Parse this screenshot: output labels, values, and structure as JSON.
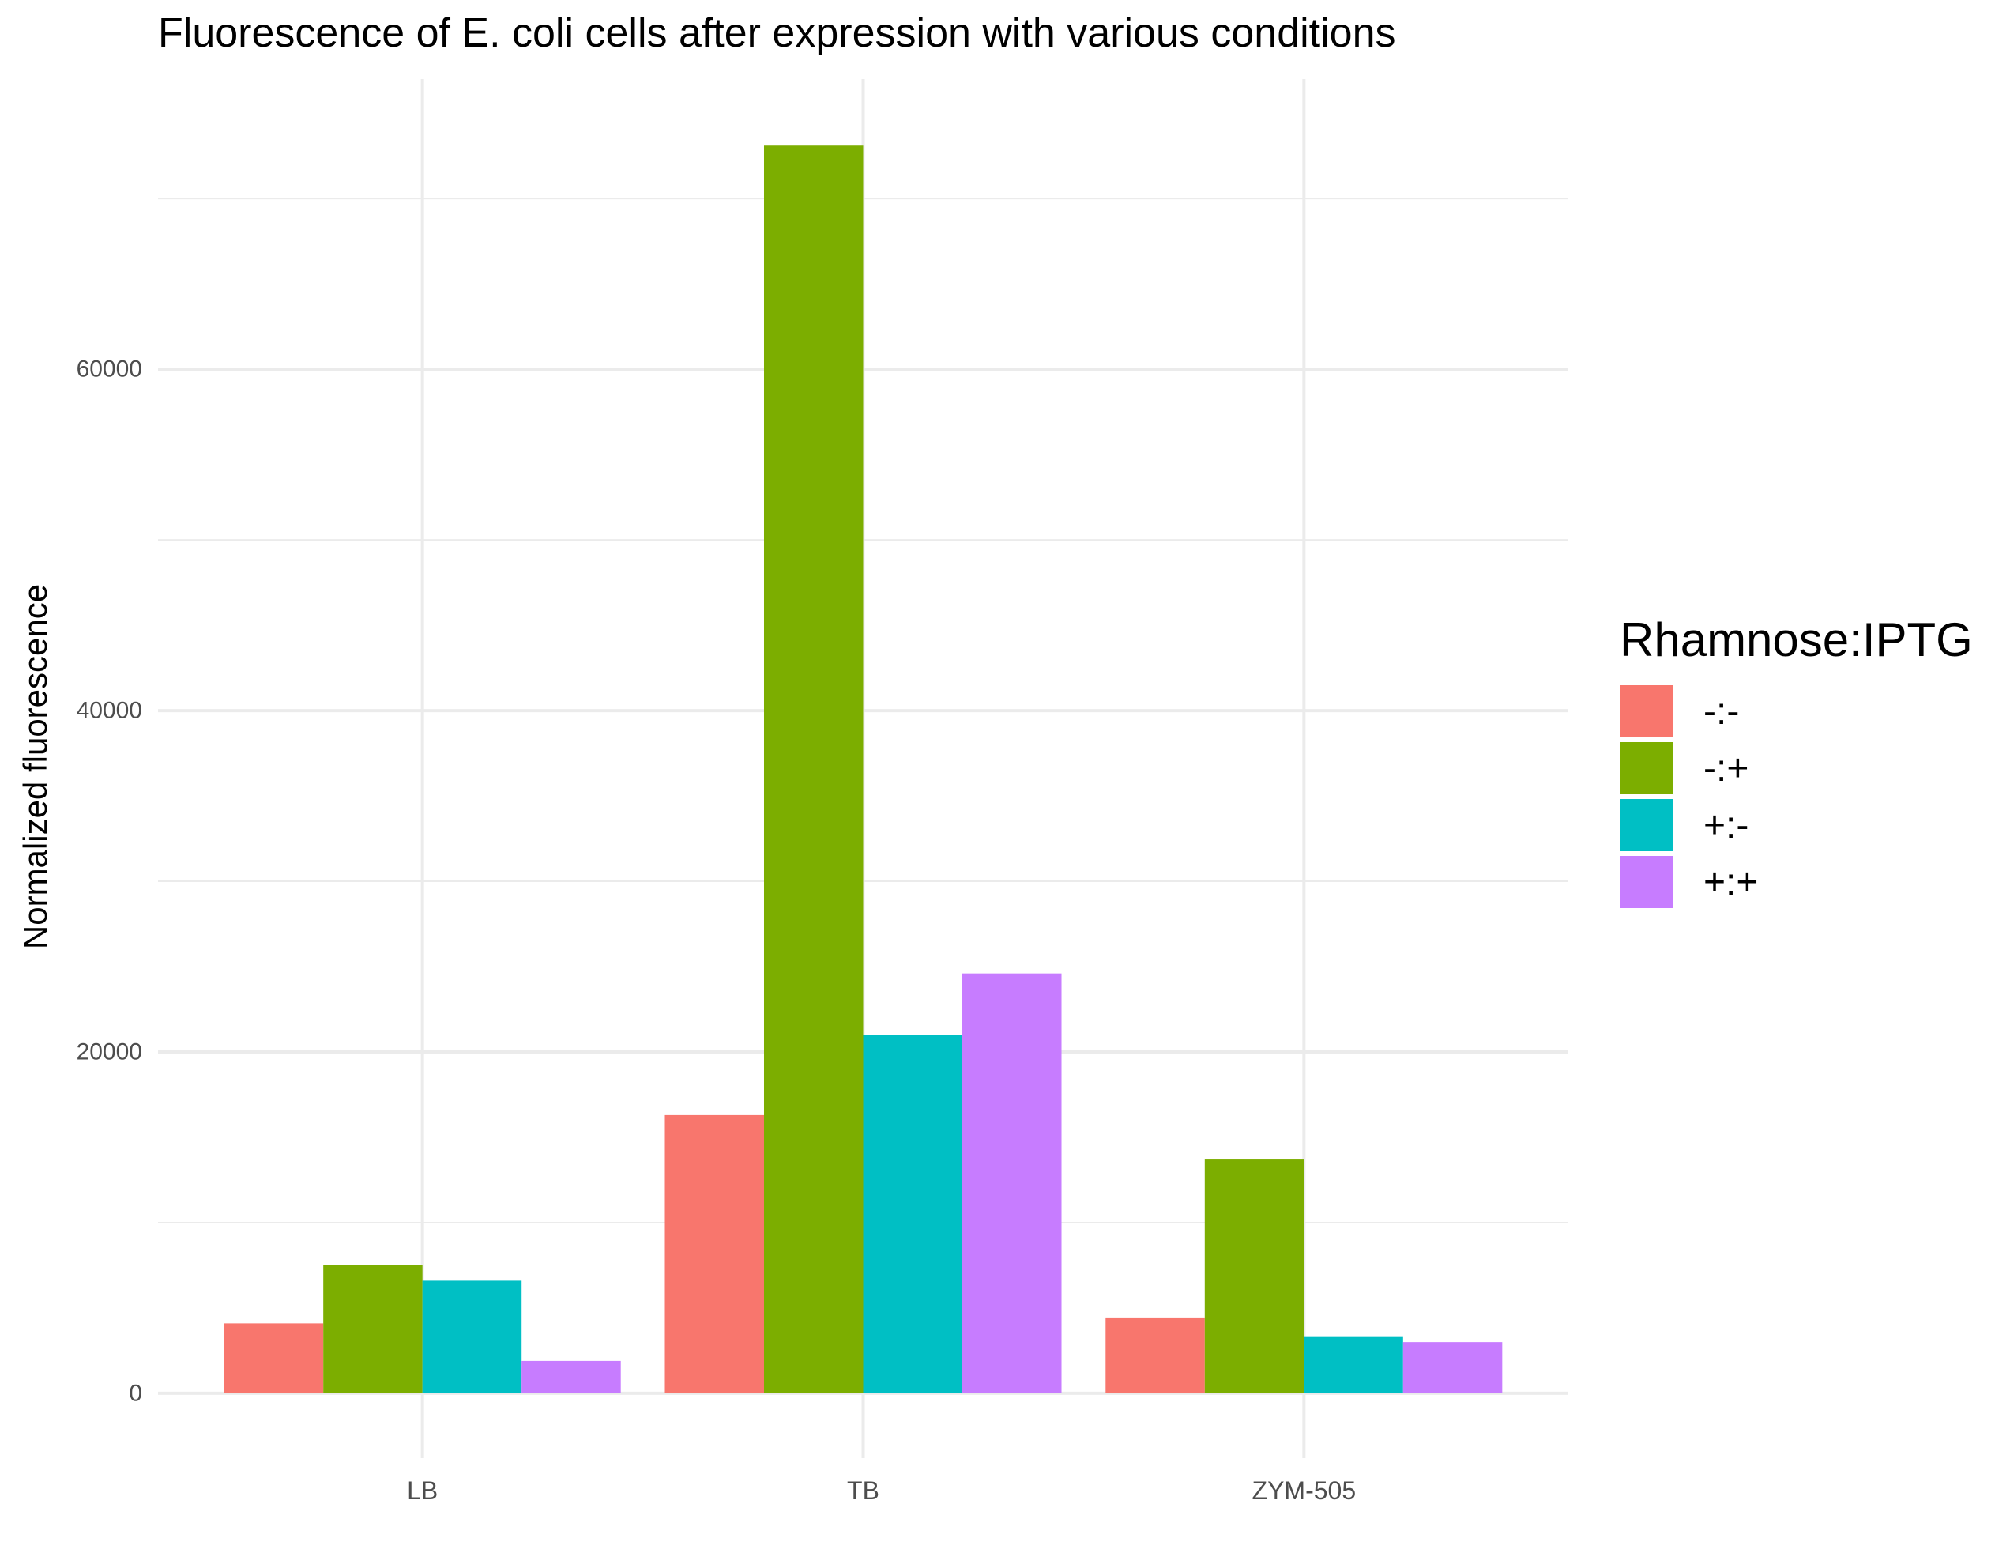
{
  "chart_data": {
    "type": "bar",
    "title": "Fluorescence of E. coli cells after expression with various conditions",
    "xlabel": "",
    "ylabel": "Normalized fluorescence",
    "categories": [
      "LB",
      "TB",
      "ZYM-505"
    ],
    "yticks": [
      0,
      20000,
      40000,
      60000
    ],
    "ylim": [
      -3800,
      77000
    ],
    "grid": true,
    "legend": {
      "title": "Rhamnose:IPTG",
      "position": "right"
    },
    "series": [
      {
        "name": "-:-",
        "color": "#F8766D",
        "values": [
          4100,
          16300,
          4400
        ]
      },
      {
        "name": "-:+",
        "color": "#7CAE00",
        "values": [
          7500,
          73100,
          13700
        ]
      },
      {
        "name": "+:-",
        "color": "#00BFC4",
        "values": [
          6600,
          21000,
          3300
        ]
      },
      {
        "name": "+:+",
        "color": "#C77CFF",
        "values": [
          1900,
          24600,
          3000
        ]
      }
    ]
  }
}
